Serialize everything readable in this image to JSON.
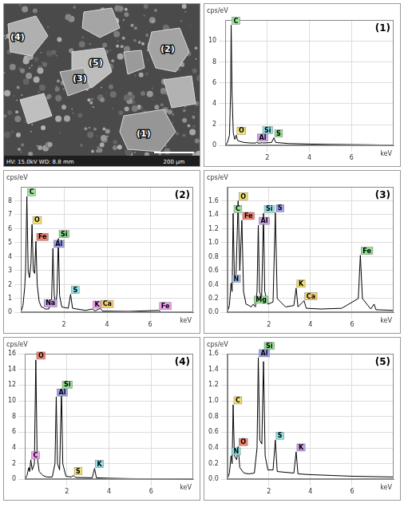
{
  "image": {
    "labels": [
      "(1)",
      "(2)",
      "(3)",
      "(4)",
      "(5)"
    ],
    "scale_bar": "200 µm",
    "info": "HV: 15.0kV WD: 8.8 mm"
  },
  "chart_data": [
    {
      "type": "line",
      "title": "(1)",
      "xlabel": "keV",
      "ylabel": "cps/eV",
      "color": "#000000",
      "grid": true,
      "xlim": [
        0,
        8
      ],
      "xticks": [
        2,
        4,
        6
      ],
      "ylim": [
        0,
        12
      ],
      "yticks": [
        0,
        2,
        4,
        6,
        8,
        10
      ],
      "x": [
        0,
        0.1,
        0.2,
        0.25,
        0.28,
        0.32,
        0.38,
        0.45,
        0.52,
        0.58,
        0.7,
        0.9,
        1.2,
        1.45,
        1.49,
        1.55,
        1.7,
        1.74,
        1.8,
        2.2,
        2.31,
        2.4,
        3,
        4,
        5,
        6,
        7,
        8
      ],
      "values": [
        0,
        0.3,
        1.0,
        5,
        11.5,
        5,
        1.2,
        0.6,
        1.0,
        0.5,
        0.4,
        0.3,
        0.25,
        0.25,
        0.35,
        0.25,
        0.25,
        0.3,
        0.25,
        0.3,
        0.75,
        0.3,
        0.2,
        0.15,
        0.12,
        0.1,
        0.08,
        0.05
      ],
      "annotations": [
        {
          "x": 0.28,
          "y": 11.5,
          "label": "C",
          "color": "#9be39b"
        },
        {
          "x": 0.52,
          "y": 1.0,
          "label": "O",
          "color": "#f5e36a"
        },
        {
          "x": 1.49,
          "y": 0.35,
          "label": "Al",
          "color": "#c9a0e8"
        },
        {
          "x": 1.74,
          "y": 0.3,
          "label": "Si",
          "color": "#8fe3e8"
        },
        {
          "x": 2.31,
          "y": 0.75,
          "label": "S",
          "color": "#8fe08f"
        }
      ]
    },
    {
      "type": "line",
      "title": "(2)",
      "xlabel": "keV",
      "ylabel": "cps/eV",
      "color": "#000000",
      "grid": true,
      "xlim": [
        0,
        8
      ],
      "xticks": [
        2,
        4,
        6
      ],
      "ylim": [
        0,
        9
      ],
      "yticks": [
        0,
        1,
        2,
        3,
        4,
        5,
        6,
        7,
        8
      ],
      "x": [
        0,
        0.1,
        0.18,
        0.22,
        0.28,
        0.34,
        0.4,
        0.47,
        0.52,
        0.58,
        0.64,
        0.7,
        0.76,
        0.85,
        0.95,
        1.04,
        1.12,
        1.3,
        1.43,
        1.49,
        1.55,
        1.62,
        1.68,
        1.74,
        1.8,
        1.9,
        2.2,
        2.31,
        2.4,
        3.0,
        3.31,
        3.45,
        3.69,
        3.8,
        5,
        6.4,
        6.5,
        8
      ],
      "values": [
        0,
        0.5,
        1.8,
        3,
        8.3,
        3,
        2.5,
        3.5,
        6.3,
        3,
        2.8,
        5.1,
        2,
        0.8,
        0.4,
        0.35,
        0.25,
        0.25,
        1,
        4.6,
        1.2,
        0.6,
        1.4,
        5.3,
        1.2,
        0.4,
        0.3,
        1.3,
        0.3,
        0.15,
        0.25,
        0.12,
        0.3,
        0.1,
        0.08,
        0.15,
        0.05,
        0.03
      ],
      "annotations": [
        {
          "x": 0.28,
          "y": 8.3,
          "label": "C",
          "color": "#9be39b"
        },
        {
          "x": 0.52,
          "y": 6.3,
          "label": "O",
          "color": "#f5e36a"
        },
        {
          "x": 0.7,
          "y": 5.1,
          "label": "Fe",
          "color": "#f08070"
        },
        {
          "x": 1.04,
          "y": 0.35,
          "label": "Na",
          "color": "#c9a0e8"
        },
        {
          "x": 1.49,
          "y": 4.6,
          "label": "Al",
          "color": "#9aa0f0"
        },
        {
          "x": 1.74,
          "y": 5.3,
          "label": "Si",
          "color": "#8fe08f"
        },
        {
          "x": 2.31,
          "y": 1.3,
          "label": "S",
          "color": "#8fe3e8"
        },
        {
          "x": 3.31,
          "y": 0.25,
          "label": "K",
          "color": "#f0a0f0"
        },
        {
          "x": 3.69,
          "y": 0.3,
          "label": "Ca",
          "color": "#f5d070"
        },
        {
          "x": 6.4,
          "y": 0.15,
          "label": "Fe",
          "color": "#f0a0f0"
        }
      ]
    },
    {
      "type": "line",
      "title": "(3)",
      "xlabel": "keV",
      "ylabel": "cps/eV",
      "color": "#000000",
      "grid": true,
      "xlim": [
        0,
        8
      ],
      "xticks": [
        2,
        4,
        6
      ],
      "ylim": [
        0,
        1.8
      ],
      "yticks": [
        {
          "value": 0,
          "label": "0.0"
        },
        0.2,
        0.4,
        0.6,
        0.8,
        {
          "value": 1,
          "label": "1.0"
        },
        1.2,
        1.4,
        1.6
      ],
      "x": [
        0,
        0.1,
        0.18,
        0.23,
        0.28,
        0.34,
        0.42,
        0.52,
        0.6,
        0.7,
        0.78,
        0.9,
        1.04,
        1.15,
        1.25,
        1.35,
        1.43,
        1.49,
        1.55,
        1.65,
        1.74,
        1.8,
        1.95,
        2.2,
        2.31,
        2.4,
        2.8,
        3.2,
        3.31,
        3.4,
        3.69,
        3.8,
        4.5,
        5.5,
        6.3,
        6.4,
        6.5,
        6.9,
        7.06,
        7.15,
        8
      ],
      "values": [
        0,
        0.1,
        0.42,
        0.3,
        1.42,
        0.5,
        0.55,
        1.6,
        0.6,
        1.32,
        0.3,
        0.12,
        0.1,
        0.08,
        0.12,
        0.08,
        0.3,
        1.25,
        0.3,
        0.2,
        1.42,
        0.3,
        0.12,
        0.15,
        1.43,
        0.2,
        0.08,
        0.1,
        0.35,
        0.08,
        0.17,
        0.06,
        0.05,
        0.06,
        0.2,
        0.82,
        0.2,
        0.05,
        0.12,
        0.04,
        0.03
      ],
      "annotations": [
        {
          "x": 0.18,
          "y": 0.42,
          "label": "N",
          "color": "#a0c0f0"
        },
        {
          "x": 0.28,
          "y": 1.42,
          "label": "C",
          "color": "#9be39b"
        },
        {
          "x": 0.52,
          "y": 1.6,
          "label": "O",
          "color": "#f5e36a"
        },
        {
          "x": 0.7,
          "y": 1.32,
          "label": "Fe",
          "color": "#f08070"
        },
        {
          "x": 1.25,
          "y": 0.12,
          "label": "Mg",
          "color": "#90e090"
        },
        {
          "x": 1.49,
          "y": 1.25,
          "label": "Al",
          "color": "#c9a0e8"
        },
        {
          "x": 1.74,
          "y": 1.42,
          "label": "Si",
          "color": "#8fe3e8"
        },
        {
          "x": 2.31,
          "y": 1.43,
          "label": "S",
          "color": "#9aa0f0"
        },
        {
          "x": 3.31,
          "y": 0.35,
          "label": "K",
          "color": "#f5e36a"
        },
        {
          "x": 3.69,
          "y": 0.17,
          "label": "Ca",
          "color": "#f5d070"
        },
        {
          "x": 6.4,
          "y": 0.82,
          "label": "Fe",
          "color": "#8fe08f"
        }
      ]
    },
    {
      "type": "line",
      "title": "(4)",
      "xlabel": "keV",
      "ylabel": "cps/eV",
      "color": "#000000",
      "grid": true,
      "xlim": [
        0,
        8
      ],
      "xticks": [
        2,
        4,
        6
      ],
      "ylim": [
        0,
        16
      ],
      "yticks": [
        0,
        2,
        4,
        6,
        8,
        10,
        12,
        14,
        16
      ],
      "x": [
        0,
        0.1,
        0.18,
        0.23,
        0.28,
        0.35,
        0.45,
        0.52,
        0.58,
        0.68,
        0.85,
        1.04,
        1.3,
        1.43,
        1.49,
        1.55,
        1.65,
        1.74,
        1.8,
        1.95,
        2.2,
        2.31,
        2.4,
        3.2,
        3.31,
        3.4,
        4,
        5,
        6,
        8
      ],
      "values": [
        0,
        0.5,
        1.5,
        1,
        2.5,
        1.2,
        2,
        15.2,
        3,
        1,
        0.5,
        0.3,
        0.3,
        2,
        10.5,
        2,
        1.2,
        11.3,
        2,
        0.4,
        0.3,
        0.5,
        0.25,
        0.2,
        1.4,
        0.2,
        0.15,
        0.1,
        0.08,
        0.05
      ],
      "annotations": [
        {
          "x": 0.28,
          "y": 2.5,
          "label": "C",
          "color": "#f0a0f0"
        },
        {
          "x": 0.52,
          "y": 15.2,
          "label": "O",
          "color": "#f08070"
        },
        {
          "x": 1.49,
          "y": 10.5,
          "label": "Al",
          "color": "#9aa0f0"
        },
        {
          "x": 1.74,
          "y": 11.3,
          "label": "Si",
          "color": "#8fe08f"
        },
        {
          "x": 2.31,
          "y": 0.5,
          "label": "S",
          "color": "#f5e36a"
        },
        {
          "x": 3.31,
          "y": 1.4,
          "label": "K",
          "color": "#8fe3e8"
        }
      ]
    },
    {
      "type": "line",
      "title": "(5)",
      "xlabel": "keV",
      "ylabel": "cps/eV",
      "color": "#000000",
      "grid": true,
      "xlim": [
        0,
        8
      ],
      "xticks": [
        2,
        4,
        6
      ],
      "ylim": [
        0,
        1.6
      ],
      "yticks": [
        {
          "value": 0,
          "label": "0.0"
        },
        0.2,
        0.4,
        0.6,
        0.8,
        {
          "value": 1,
          "label": "1.0"
        },
        1.2,
        1.4,
        1.6
      ],
      "x": [
        0,
        0.1,
        0.18,
        0.23,
        0.28,
        0.34,
        0.45,
        0.52,
        0.6,
        0.8,
        1.04,
        1.3,
        1.43,
        1.49,
        1.56,
        1.66,
        1.74,
        1.82,
        1.95,
        2.2,
        2.31,
        2.4,
        3.2,
        3.31,
        3.4,
        4,
        5,
        6,
        8
      ],
      "values": [
        0,
        0.08,
        0.3,
        0.2,
        0.95,
        0.3,
        0.25,
        0.42,
        0.15,
        0.08,
        0.07,
        0.08,
        0.4,
        1.55,
        0.5,
        0.45,
        1.5,
        0.3,
        0.12,
        0.12,
        0.5,
        0.1,
        0.08,
        0.35,
        0.07,
        0.06,
        0.05,
        0.04,
        0.03
      ],
      "annotations": [
        {
          "x": 0.18,
          "y": 0.3,
          "label": "N",
          "color": "#8fe3e8"
        },
        {
          "x": 0.28,
          "y": 0.95,
          "label": "C",
          "color": "#f5e36a"
        },
        {
          "x": 0.52,
          "y": 0.42,
          "label": "O",
          "color": "#f08070"
        },
        {
          "x": 1.49,
          "y": 1.55,
          "label": "Al",
          "color": "#9aa0f0"
        },
        {
          "x": 1.74,
          "y": 1.5,
          "label": "Si",
          "color": "#8fe08f"
        },
        {
          "x": 2.31,
          "y": 0.5,
          "label": "S",
          "color": "#8fe3e8"
        },
        {
          "x": 3.31,
          "y": 0.35,
          "label": "K",
          "color": "#c9a0e8"
        }
      ]
    }
  ]
}
